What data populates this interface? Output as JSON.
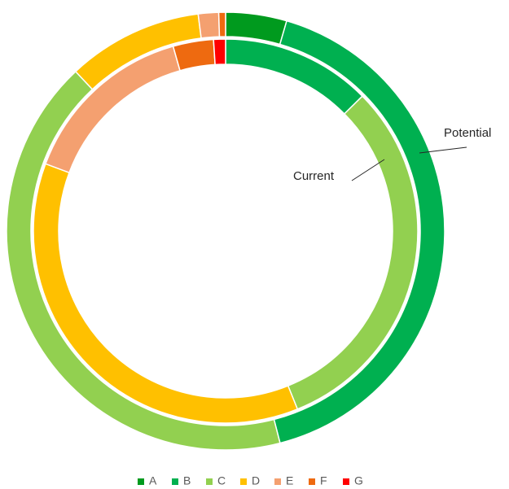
{
  "chart_data": {
    "type": "doughnut",
    "categories": [
      "A",
      "B",
      "C",
      "D",
      "E",
      "F",
      "G"
    ],
    "colors": [
      "#009a1e",
      "#00b050",
      "#92d050",
      "#ffc000",
      "#f4a070",
      "#ee6a10",
      "#ff0000"
    ],
    "series": [
      {
        "name": "Potential",
        "values": [
          4.5,
          41.5,
          42,
          10,
          1.5,
          0.5,
          0
        ]
      },
      {
        "name": "Current",
        "values": [
          0,
          12.6,
          31.3,
          36.8,
          14.9,
          3.4,
          1
        ]
      }
    ],
    "legend": "bottom"
  }
}
